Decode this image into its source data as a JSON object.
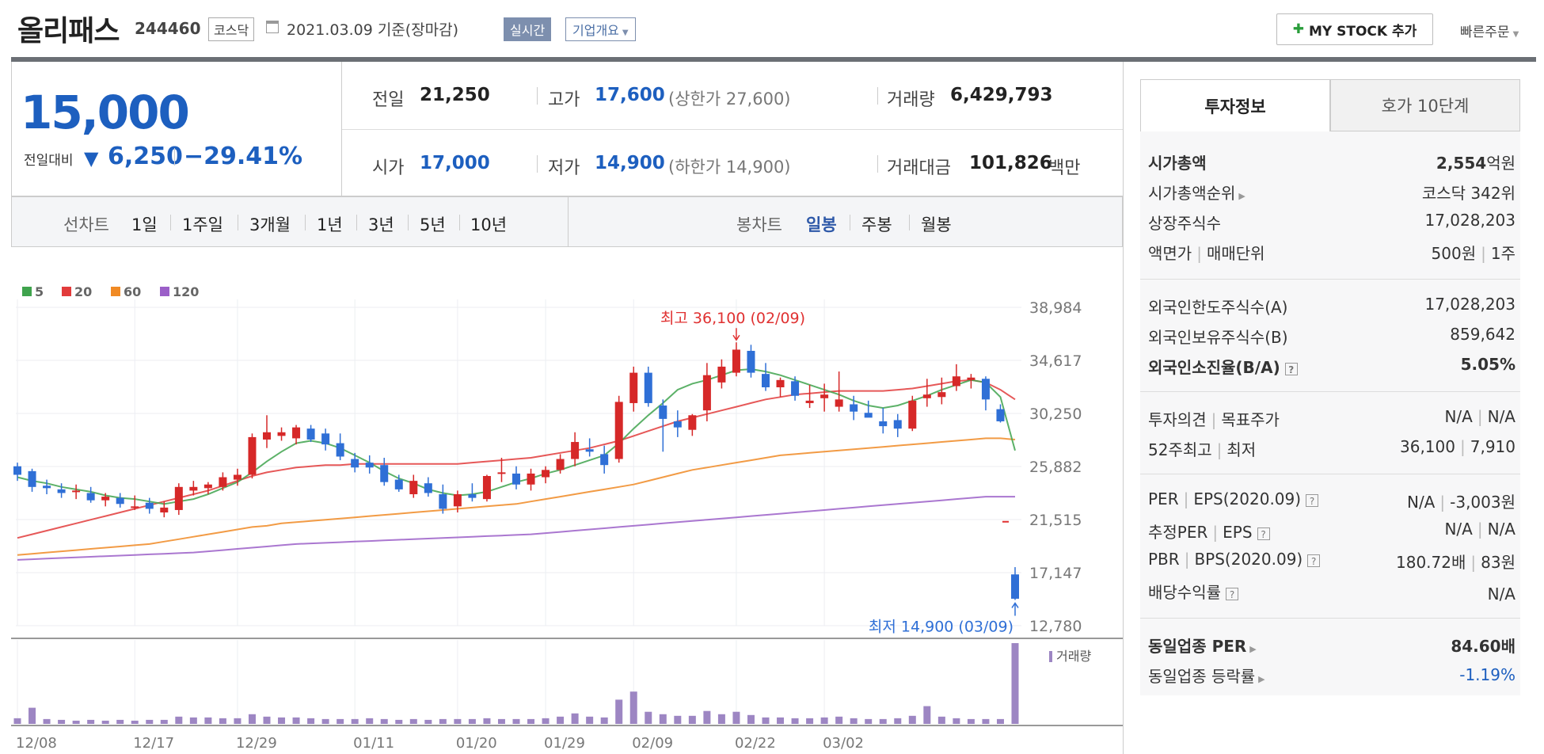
{
  "header": {
    "name": "올리패스",
    "code": "244460",
    "market": "코스닥",
    "date": "2021.03.09 기준(장마감)",
    "realtime": "실시간",
    "overview": "기업개요",
    "mystock": "MY STOCK 추가",
    "quick_order": "빠른주문"
  },
  "price": {
    "current": "15,000",
    "prev_label": "전일대비",
    "change": "6,250",
    "change_pct": "−29.41%"
  },
  "stats": {
    "prev_label": "전일",
    "prev": "21,250",
    "high_label": "고가",
    "high": "17,600",
    "upper_label": "(상한가 27,600)",
    "volume_label": "거래량",
    "volume": "6,429,793",
    "open_label": "시가",
    "open": "17,000",
    "low_label": "저가",
    "low": "14,900",
    "lower_label": "(하한가 14,900)",
    "amount_label": "거래대금",
    "amount": "101,826",
    "amount_unit": "백만"
  },
  "period": {
    "line_label": "선차트",
    "line_items": [
      "1일",
      "1주일",
      "3개월",
      "1년",
      "3년",
      "5년",
      "10년"
    ],
    "candle_label": "봉차트",
    "candle_items": [
      "일봉",
      "주봉",
      "월봉"
    ]
  },
  "chart_data": {
    "type": "candlestick",
    "legend": [
      "5",
      "20",
      "60",
      "120"
    ],
    "legend_colors": [
      "#3fa34d",
      "#e23b3b",
      "#f08a24",
      "#9b5fc8"
    ],
    "y_ticks": [
      "38,984",
      "34,617",
      "30,250",
      "25,882",
      "21,515",
      "17,147",
      "12,780"
    ],
    "x_ticks": [
      "12/08",
      "12/17",
      "12/29",
      "01/11",
      "01/20",
      "01/29",
      "02/09",
      "02/22",
      "03/02"
    ],
    "ylim": [
      12780,
      38984
    ],
    "max_label": "최고 36,100 (02/09)",
    "min_label": "최저 14,900 (03/09)",
    "volume_label": "거래량",
    "up_color": "#d62828",
    "down_color": "#2f6fd6",
    "candles": [
      [
        25900,
        26200,
        24700,
        25200
      ],
      [
        25500,
        25700,
        23800,
        24200
      ],
      [
        24300,
        24800,
        23600,
        24100
      ],
      [
        24000,
        24500,
        23300,
        23700
      ],
      [
        23800,
        24400,
        23200,
        23900
      ],
      [
        23700,
        24200,
        22900,
        23100
      ],
      [
        23100,
        23700,
        22600,
        23400
      ],
      [
        23300,
        23700,
        22500,
        22800
      ],
      [
        22600,
        23500,
        22300,
        22600
      ],
      [
        22900,
        23300,
        22000,
        22400
      ],
      [
        22100,
        23000,
        21700,
        22500
      ],
      [
        22300,
        24500,
        21900,
        24200
      ],
      [
        23900,
        24700,
        23500,
        24200
      ],
      [
        24100,
        24600,
        23600,
        24400
      ],
      [
        24200,
        25400,
        23900,
        25000
      ],
      [
        24800,
        25700,
        24300,
        25200
      ],
      [
        25200,
        28600,
        24900,
        28300
      ],
      [
        28100,
        30100,
        27400,
        28700
      ],
      [
        28400,
        29100,
        28000,
        28700
      ],
      [
        28200,
        29300,
        27700,
        29100
      ],
      [
        29000,
        29300,
        27900,
        28100
      ],
      [
        28600,
        29000,
        27200,
        27700
      ],
      [
        27800,
        28600,
        26400,
        26700
      ],
      [
        26500,
        27000,
        25400,
        25800
      ],
      [
        26200,
        26800,
        25300,
        25800
      ],
      [
        26000,
        26600,
        24300,
        24600
      ],
      [
        24800,
        25200,
        23800,
        24000
      ],
      [
        23600,
        25200,
        23300,
        24700
      ],
      [
        24500,
        25000,
        23400,
        23700
      ],
      [
        23600,
        24400,
        22000,
        22400
      ],
      [
        22600,
        23900,
        22100,
        23600
      ],
      [
        23600,
        24500,
        23000,
        23300
      ],
      [
        23200,
        25200,
        23000,
        25100
      ],
      [
        25300,
        26600,
        24600,
        25400
      ],
      [
        25300,
        25900,
        24000,
        24400
      ],
      [
        24400,
        25700,
        23900,
        25300
      ],
      [
        25000,
        25900,
        24500,
        25600
      ],
      [
        25600,
        26900,
        25300,
        26500
      ],
      [
        26500,
        28700,
        25900,
        27900
      ],
      [
        27300,
        28200,
        26700,
        27100
      ],
      [
        26900,
        27600,
        25300,
        26000
      ],
      [
        26500,
        31700,
        26200,
        31200
      ],
      [
        31100,
        34100,
        30400,
        33600
      ],
      [
        33600,
        34100,
        30800,
        31100
      ],
      [
        30900,
        31400,
        27100,
        29800
      ],
      [
        29600,
        30500,
        28300,
        29100
      ],
      [
        28900,
        30200,
        28400,
        30100
      ],
      [
        30500,
        34400,
        29600,
        33400
      ],
      [
        32800,
        34700,
        32300,
        34100
      ],
      [
        33600,
        36100,
        33300,
        35500
      ],
      [
        35400,
        35900,
        33200,
        33600
      ],
      [
        33500,
        34400,
        32100,
        32400
      ],
      [
        32400,
        33200,
        31600,
        33000
      ],
      [
        32900,
        33300,
        31300,
        31700
      ],
      [
        31100,
        32600,
        30700,
        31300
      ],
      [
        31500,
        32700,
        30400,
        31800
      ],
      [
        30800,
        33700,
        30400,
        31400
      ],
      [
        31000,
        31700,
        29700,
        30400
      ],
      [
        30300,
        31300,
        30000,
        29900
      ],
      [
        29600,
        30700,
        28600,
        29200
      ],
      [
        29700,
        30200,
        28300,
        29000
      ],
      [
        29000,
        31700,
        28800,
        31300
      ],
      [
        31500,
        33100,
        30800,
        31800
      ],
      [
        31600,
        33200,
        31000,
        32000
      ],
      [
        32500,
        34300,
        32100,
        33300
      ],
      [
        33000,
        33500,
        32300,
        33200
      ],
      [
        33100,
        33300,
        30500,
        31400
      ],
      [
        30600,
        31000,
        29500,
        29600
      ],
      [
        17000,
        17600,
        14900,
        15000
      ]
    ],
    "volumes": [
      0.07,
      0.2,
      0.06,
      0.05,
      0.04,
      0.05,
      0.04,
      0.05,
      0.04,
      0.05,
      0.05,
      0.09,
      0.08,
      0.08,
      0.07,
      0.07,
      0.12,
      0.09,
      0.08,
      0.08,
      0.07,
      0.06,
      0.06,
      0.06,
      0.07,
      0.06,
      0.05,
      0.06,
      0.05,
      0.06,
      0.06,
      0.06,
      0.07,
      0.06,
      0.06,
      0.06,
      0.07,
      0.09,
      0.13,
      0.09,
      0.08,
      0.3,
      0.4,
      0.15,
      0.12,
      0.1,
      0.1,
      0.16,
      0.12,
      0.15,
      0.11,
      0.08,
      0.08,
      0.07,
      0.07,
      0.08,
      0.09,
      0.07,
      0.06,
      0.06,
      0.07,
      0.1,
      0.22,
      0.09,
      0.07,
      0.06,
      0.06,
      0.06,
      1.0
    ],
    "ma5": [
      25000,
      24700,
      24500,
      24200,
      24000,
      23800,
      23500,
      23300,
      23200,
      23000,
      22800,
      23000,
      23200,
      23600,
      24100,
      24600,
      25400,
      26300,
      27100,
      27800,
      28000,
      27800,
      27400,
      26800,
      26200,
      25500,
      24900,
      24500,
      24000,
      23700,
      23500,
      23600,
      23800,
      24200,
      24600,
      24900,
      25300,
      25600,
      26000,
      26400,
      26800,
      27800,
      29000,
      30100,
      31100,
      32200,
      32700,
      33000,
      33400,
      33800,
      33900,
      33700,
      33400,
      33000,
      32600,
      32200,
      31800,
      31300,
      30900,
      30700,
      30900,
      31300,
      31700,
      32200,
      32600,
      33000,
      32800,
      31600,
      27200
    ],
    "ma20": [
      20000,
      20300,
      20600,
      20900,
      21200,
      21500,
      21800,
      22100,
      22400,
      22700,
      23000,
      23300,
      23600,
      23900,
      24300,
      24700,
      25100,
      25400,
      25600,
      25800,
      25900,
      26000,
      26000,
      26100,
      26100,
      26100,
      26100,
      26100,
      26100,
      26100,
      26100,
      26200,
      26300,
      26400,
      26500,
      26600,
      26800,
      27000,
      27200,
      27400,
      27700,
      28000,
      28400,
      28800,
      29200,
      29600,
      29900,
      30200,
      30500,
      30800,
      31100,
      31400,
      31600,
      31800,
      31900,
      32000,
      32100,
      32100,
      32100,
      32100,
      32200,
      32300,
      32500,
      32700,
      32900,
      33000,
      32800,
      32200,
      31400
    ],
    "ma60": [
      18600,
      18700,
      18800,
      18900,
      19000,
      19100,
      19200,
      19300,
      19400,
      19500,
      19700,
      19900,
      20100,
      20300,
      20500,
      20700,
      20900,
      21000,
      21200,
      21300,
      21400,
      21500,
      21600,
      21700,
      21800,
      21900,
      22000,
      22100,
      22200,
      22300,
      22400,
      22500,
      22600,
      22700,
      22800,
      23000,
      23200,
      23400,
      23600,
      23800,
      24000,
      24200,
      24400,
      24700,
      25000,
      25300,
      25600,
      25800,
      26000,
      26200,
      26400,
      26600,
      26800,
      26900,
      27000,
      27100,
      27200,
      27300,
      27400,
      27500,
      27600,
      27700,
      27800,
      27900,
      28000,
      28100,
      28200,
      28200,
      28100
    ],
    "ma120": [
      18200,
      18250,
      18300,
      18350,
      18400,
      18450,
      18500,
      18550,
      18600,
      18650,
      18700,
      18750,
      18800,
      18900,
      19000,
      19100,
      19200,
      19300,
      19400,
      19500,
      19550,
      19600,
      19650,
      19700,
      19750,
      19800,
      19850,
      19900,
      19950,
      20000,
      20050,
      20100,
      20150,
      20200,
      20250,
      20300,
      20400,
      20500,
      20600,
      20700,
      20800,
      20900,
      21000,
      21100,
      21200,
      21300,
      21400,
      21500,
      21600,
      21700,
      21800,
      21900,
      22000,
      22100,
      22200,
      22300,
      22400,
      22500,
      22600,
      22700,
      22800,
      22900,
      23000,
      23100,
      23200,
      23300,
      23400,
      23400,
      23400
    ]
  },
  "right": {
    "tab_info": "투자정보",
    "tab_quote": "호가 10단계",
    "mcap_label": "시가총액",
    "mcap_val": "2,554",
    "mcap_unit": "억원",
    "rank_label": "시가총액순위",
    "rank_val": "코스닥 342위",
    "shares_label": "상장주식수",
    "shares_val": "17,028,203",
    "face_label": "액면가",
    "unit_label": "매매단위",
    "face_val": "500원",
    "unit_val": "1주",
    "foreign_limit_label": "외국인한도주식수(A)",
    "foreign_limit_val": "17,028,203",
    "foreign_hold_label": "외국인보유주식수(B)",
    "foreign_hold_val": "859,642",
    "foreign_ratio_label": "외국인소진율(B/A)",
    "foreign_ratio_val": "5.05%",
    "opinion_label": "투자의견",
    "target_label": "목표주가",
    "opinion_val": "N/A",
    "target_val": "N/A",
    "w52_high_label": "52주최고",
    "w52_low_label": "최저",
    "w52_high_val": "36,100",
    "w52_low_val": "7,910",
    "per_label": "PER",
    "eps_label": "EPS(2020.09)",
    "per_val": "N/A",
    "eps_val": "-3,003원",
    "est_per_label": "추정PER",
    "est_eps_label": "EPS",
    "est_per_val": "N/A",
    "est_eps_val": "N/A",
    "pbr_label": "PBR",
    "bps_label": "BPS(2020.09)",
    "pbr_val": "180.72배",
    "bps_val": "83원",
    "div_label": "배당수익률",
    "div_val": "N/A",
    "sector_per_label": "동일업종 PER",
    "sector_per_val": "84.60배",
    "sector_chg_label": "동일업종 등락률",
    "sector_chg_val": "-1.19%"
  }
}
